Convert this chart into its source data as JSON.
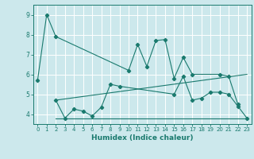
{
  "xlabel": "Humidex (Indice chaleur)",
  "bg_color": "#cce8ec",
  "grid_color": "#ffffff",
  "line_color": "#1a7a6e",
  "xlim": [
    -0.5,
    23.5
  ],
  "ylim": [
    3.5,
    9.5
  ],
  "yticks": [
    4,
    5,
    6,
    7,
    8,
    9
  ],
  "xticks": [
    0,
    1,
    2,
    3,
    4,
    5,
    6,
    7,
    8,
    9,
    10,
    11,
    12,
    13,
    14,
    15,
    16,
    17,
    18,
    19,
    20,
    21,
    22,
    23
  ],
  "series1_x": [
    0,
    1,
    2,
    10,
    11,
    12,
    13,
    14,
    15,
    16,
    17,
    20,
    21,
    22
  ],
  "series1_y": [
    5.7,
    9.0,
    7.9,
    6.2,
    7.5,
    6.4,
    7.7,
    7.75,
    5.8,
    6.85,
    6.0,
    6.0,
    5.9,
    4.5
  ],
  "series2_x": [
    2,
    3,
    4,
    5,
    6,
    7,
    8,
    9,
    15,
    16,
    17,
    18,
    19,
    20,
    21,
    22,
    23
  ],
  "series2_y": [
    4.7,
    3.8,
    4.25,
    4.15,
    3.9,
    4.35,
    5.5,
    5.4,
    5.0,
    5.9,
    4.7,
    4.8,
    5.1,
    5.1,
    5.0,
    4.4,
    3.8
  ],
  "series3_x": [
    2,
    23
  ],
  "series3_y": [
    3.8,
    3.8
  ],
  "series4_x": [
    2,
    23
  ],
  "series4_y": [
    4.7,
    6.0
  ]
}
